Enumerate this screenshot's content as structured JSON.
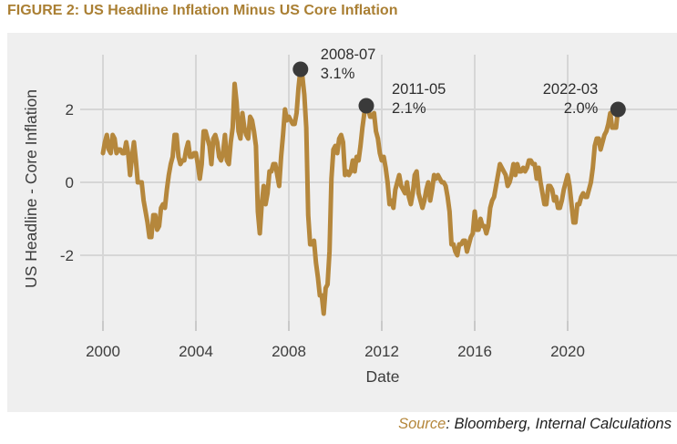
{
  "figure": {
    "title": "FIGURE 2: US Headline Inflation Minus US Core Inflation",
    "source_label": "Source",
    "source_rest": ": Bloomberg, Internal Calculations"
  },
  "colors": {
    "title": "#aa7f33",
    "line": "#b5873c",
    "marker": "#3a3a3a",
    "panel_background": "#efefef",
    "gridline": "#d6d6d6",
    "axis_text": "#3d3d3d",
    "annotation_text": "#2e2e2e",
    "source_accent": "#b5873c"
  },
  "chart_data": {
    "type": "line",
    "title": "FIGURE 2: US Headline Inflation Minus US Core Inflation",
    "xlabel": "Date",
    "ylabel": "US Headline - Core Inflation",
    "frequency": "monthly",
    "x_start": "2000-01",
    "x_end": "2022-03",
    "xticks": [
      "2000",
      "2004",
      "2008",
      "2012",
      "2016",
      "2020"
    ],
    "yticks": [
      "2",
      "0",
      "-2"
    ],
    "ylim": [
      -3.8,
      3.5
    ],
    "grid": true,
    "legend": "none",
    "series": [
      {
        "name": "US Headline - Core Inflation",
        "values": [
          0.8,
          1.1,
          1.3,
          0.9,
          0.8,
          1.3,
          1.2,
          0.8,
          0.9,
          0.9,
          0.8,
          0.8,
          1.1,
          0.8,
          0.2,
          0.7,
          1.1,
          0.6,
          0.0,
          0.0,
          0.0,
          -0.5,
          -0.8,
          -1.1,
          -1.5,
          -1.5,
          -0.9,
          -0.9,
          -1.3,
          -1.2,
          -0.7,
          -0.6,
          -0.7,
          -0.2,
          0.2,
          0.5,
          0.7,
          1.3,
          1.3,
          0.7,
          0.5,
          0.6,
          0.6,
          0.9,
          1.1,
          0.7,
          0.7,
          0.8,
          0.8,
          0.5,
          0.1,
          0.5,
          1.4,
          1.4,
          1.2,
          1.0,
          0.5,
          1.2,
          1.3,
          1.1,
          0.7,
          0.6,
          0.8,
          1.3,
          0.6,
          0.5,
          1.1,
          1.5,
          2.7,
          2.2,
          1.4,
          1.2,
          1.9,
          1.5,
          1.3,
          1.2,
          1.8,
          1.7,
          1.4,
          1.0,
          -0.8,
          -1.4,
          -0.6,
          -0.1,
          -0.6,
          -0.3,
          0.3,
          0.3,
          0.5,
          0.5,
          0.2,
          -0.1,
          0.7,
          1.3,
          2.0,
          1.7,
          1.8,
          1.7,
          1.6,
          1.6,
          1.9,
          2.6,
          3.1,
          2.9,
          2.4,
          1.5,
          -0.9,
          -1.7,
          -1.7,
          -1.6,
          -2.2,
          -2.6,
          -3.1,
          -3.1,
          -3.6,
          -2.9,
          -2.8,
          -1.9,
          0.1,
          0.9,
          1.0,
          0.8,
          1.2,
          1.3,
          1.1,
          0.2,
          0.3,
          0.2,
          0.3,
          0.6,
          0.3,
          0.7,
          0.6,
          1.0,
          1.5,
          1.9,
          2.1,
          2.0,
          1.8,
          1.8,
          1.9,
          1.4,
          1.2,
          0.8,
          0.6,
          0.7,
          0.4,
          0.0,
          -0.6,
          -0.5,
          -0.7,
          -0.2,
          0.0,
          0.2,
          -0.1,
          -0.2,
          -0.3,
          0.0,
          -0.4,
          -0.6,
          -0.3,
          0.2,
          0.3,
          -0.3,
          -0.5,
          -0.7,
          -0.5,
          -0.2,
          0.0,
          -0.5,
          -0.2,
          0.2,
          0.1,
          0.2,
          0.1,
          0.0,
          0.0,
          -0.1,
          -0.4,
          -0.8,
          -1.7,
          -1.7,
          -1.9,
          -2.0,
          -1.7,
          -1.7,
          -1.6,
          -1.6,
          -1.9,
          -1.7,
          -1.5,
          -1.4,
          -0.8,
          -1.3,
          -1.3,
          -1.0,
          -1.2,
          -1.2,
          -1.4,
          -1.2,
          -0.7,
          -0.5,
          -0.4,
          -0.1,
          0.2,
          0.5,
          0.4,
          0.3,
          0.2,
          -0.1,
          0.0,
          0.2,
          0.5,
          0.2,
          0.5,
          0.3,
          0.3,
          0.4,
          0.3,
          0.4,
          0.6,
          0.6,
          0.5,
          0.5,
          0.1,
          0.4,
          0.0,
          -0.3,
          -0.6,
          -0.6,
          -0.1,
          -0.1,
          -0.2,
          -0.5,
          -0.4,
          -0.7,
          -0.7,
          -0.5,
          -0.2,
          0.0,
          0.2,
          -0.1,
          -0.6,
          -1.1,
          -1.1,
          -0.6,
          -0.6,
          -0.4,
          -0.3,
          -0.4,
          -0.4,
          -0.2,
          0.0,
          0.4,
          1.0,
          1.2,
          1.2,
          0.9,
          1.1,
          1.3,
          1.4,
          1.6,
          1.9,
          1.5,
          1.5,
          1.5,
          2.0
        ]
      }
    ],
    "annotations": [
      {
        "date": "2008-07",
        "value": 3.1,
        "label_date": "2008-07",
        "label_value": "3.1%"
      },
      {
        "date": "2011-05",
        "value": 2.1,
        "label_date": "2011-05",
        "label_value": "2.1%"
      },
      {
        "date": "2022-03",
        "value": 2.0,
        "label_date": "2022-03",
        "label_value": "2.0%"
      }
    ]
  }
}
